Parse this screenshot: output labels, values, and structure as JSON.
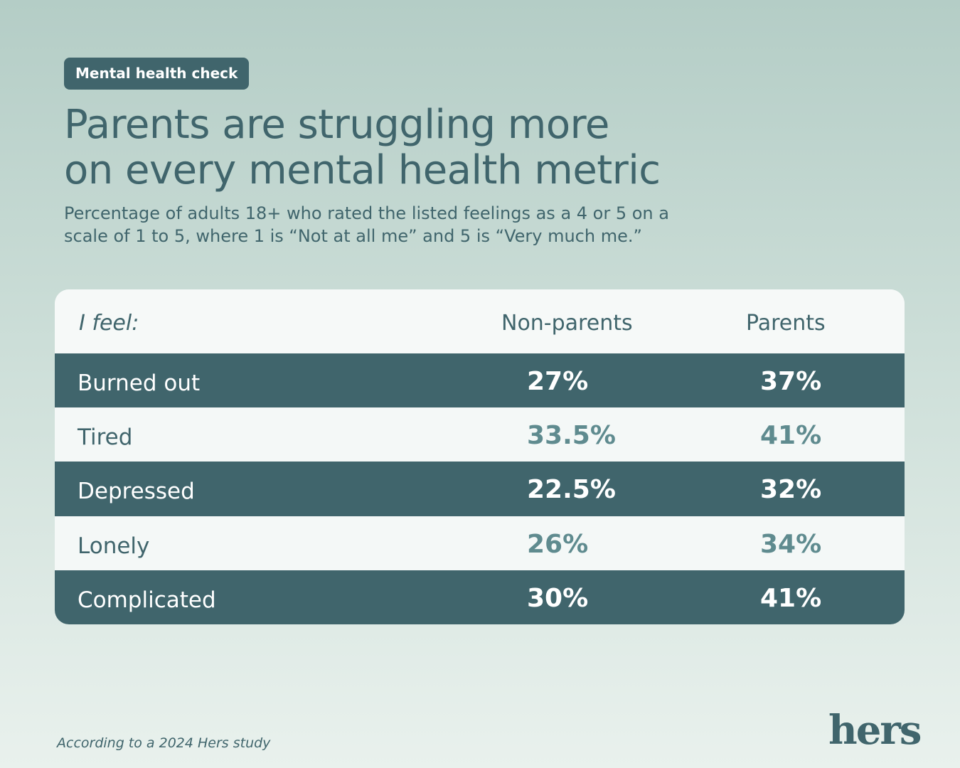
{
  "tag": "Mental health check",
  "title_line1": "Parents are struggling more",
  "title_line2": "on every mental health metric",
  "subtitle": "Percentage of adults 18+ who rated the listed feelings as a 4 or 5 on a scale of 1 to 5, where 1 is “Not at all me” and 5 is “Very much me.”",
  "footnote": "According to a 2024 Hers study",
  "logo": "hers",
  "colors": {
    "accent": "#40656c",
    "light_value": "#5f8b8f",
    "row_light": "#f4f8f7"
  },
  "chart_data": {
    "type": "table",
    "columns": [
      "I feel:",
      "Non-parents",
      "Parents"
    ],
    "rows": [
      {
        "label": "Burned out",
        "non_parents": "27%",
        "parents": "37%"
      },
      {
        "label": "Tired",
        "non_parents": "33.5%",
        "parents": "41%"
      },
      {
        "label": "Depressed",
        "non_parents": "22.5%",
        "parents": "32%"
      },
      {
        "label": "Lonely",
        "non_parents": "26%",
        "parents": "34%"
      },
      {
        "label": "Complicated",
        "non_parents": "30%",
        "parents": "41%"
      }
    ]
  }
}
